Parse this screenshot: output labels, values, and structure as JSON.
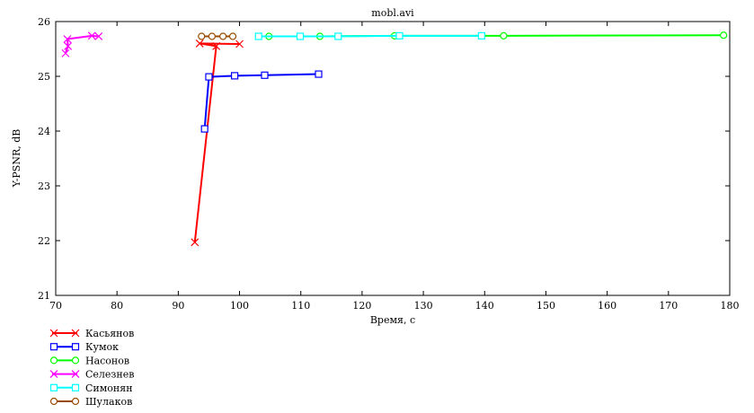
{
  "chart_data": {
    "type": "line",
    "title": "mobl.avi",
    "xlabel": "Время, с",
    "ylabel": "Y-PSNR, dB",
    "xlim": [
      70,
      180
    ],
    "ylim": [
      21,
      26
    ],
    "xticks": [
      70,
      80,
      90,
      100,
      110,
      120,
      130,
      140,
      150,
      160,
      170,
      180
    ],
    "yticks": [
      21,
      22,
      23,
      24,
      25,
      26
    ],
    "grid": false,
    "legend_position": "bottom-left",
    "series": [
      {
        "name": "Касьянов",
        "color": "#ff0000",
        "marker": "x",
        "points": [
          [
            92.7,
            21.97
          ],
          [
            96.2,
            25.55
          ],
          [
            93.5,
            25.6
          ],
          [
            100,
            25.59
          ]
        ]
      },
      {
        "name": "Кумок",
        "color": "#0000ff",
        "marker": "square",
        "points": [
          [
            94.3,
            24.04
          ],
          [
            95,
            24.99
          ],
          [
            99.2,
            25.01
          ],
          [
            104.1,
            25.02
          ],
          [
            112.9,
            25.04
          ]
        ]
      },
      {
        "name": "Насонов",
        "color": "#00ff00",
        "marker": "circle",
        "points": [
          [
            104.8,
            25.73
          ],
          [
            113.1,
            25.73
          ],
          [
            125.3,
            25.74
          ],
          [
            143.1,
            25.74
          ],
          [
            179,
            25.75
          ]
        ]
      },
      {
        "name": "Селезнев",
        "color": "#ff00ff",
        "marker": "x",
        "points": [
          [
            71.6,
            25.42
          ],
          [
            72,
            25.55
          ],
          [
            71.9,
            25.68
          ],
          [
            75.9,
            25.74
          ],
          [
            77,
            25.73
          ]
        ]
      },
      {
        "name": "Симонян",
        "color": "#00ffff",
        "marker": "square",
        "points": [
          [
            103.1,
            25.73
          ],
          [
            109.9,
            25.73
          ],
          [
            116.1,
            25.73
          ],
          [
            126.1,
            25.74
          ],
          [
            139.5,
            25.74
          ]
        ]
      },
      {
        "name": "Шулаков",
        "color": "#994c00",
        "marker": "circle",
        "points": [
          [
            93.8,
            25.73
          ],
          [
            95.5,
            25.73
          ],
          [
            97.3,
            25.73
          ],
          [
            98.9,
            25.73
          ]
        ]
      }
    ]
  }
}
